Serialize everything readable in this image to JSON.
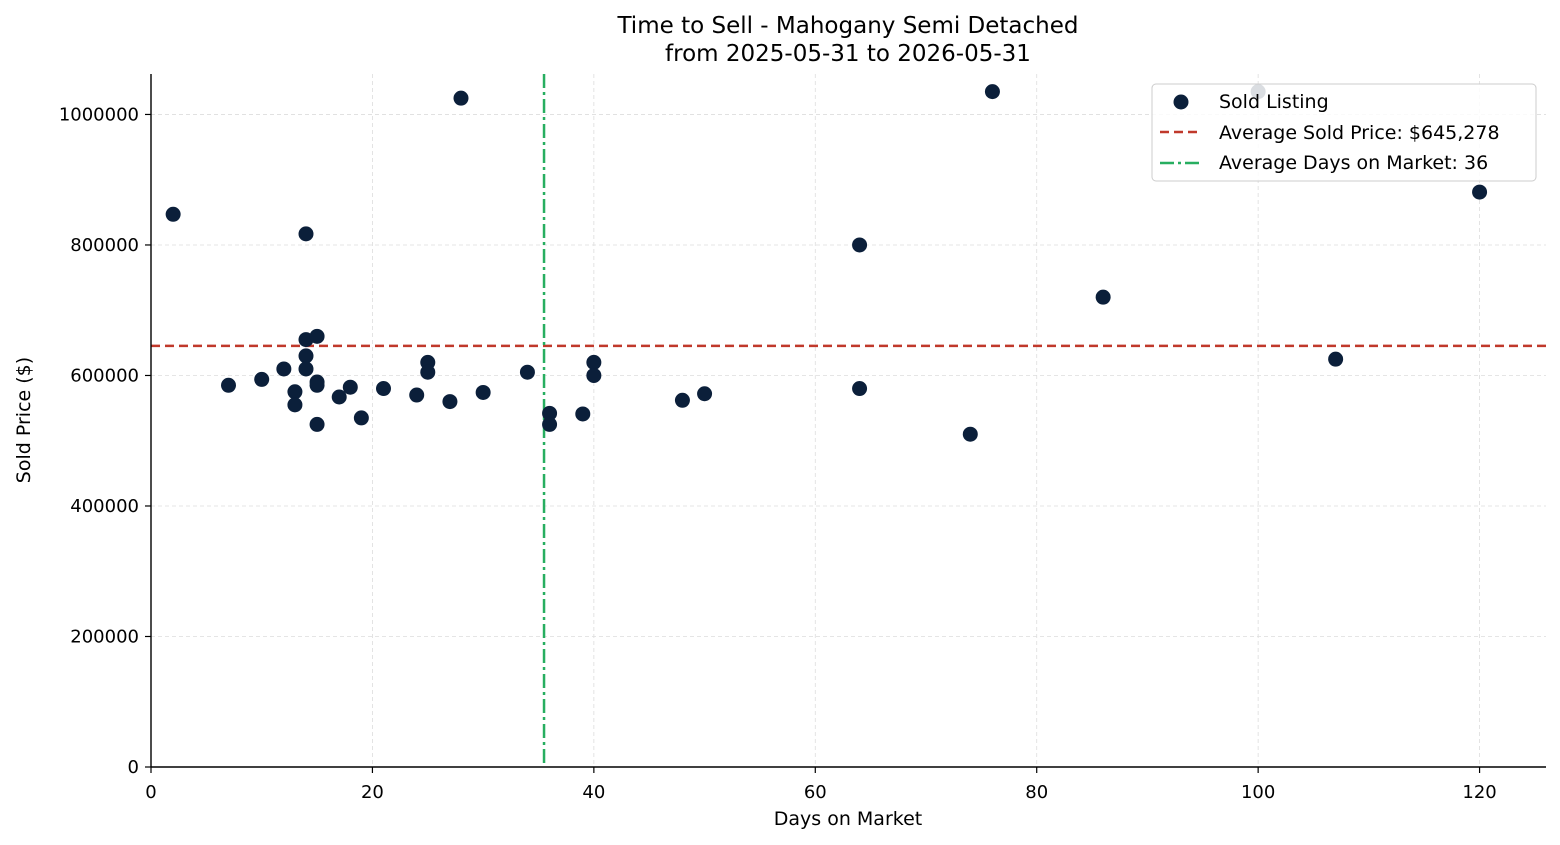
{
  "chart_data": {
    "type": "scatter",
    "title": "Time to Sell - Mahogany Semi Detached",
    "subtitle": "from 2025-05-31 to 2026-05-31",
    "xlabel": "Days on Market",
    "ylabel": "Sold Price ($)",
    "xlim": [
      0,
      126
    ],
    "ylim": [
      0,
      1062000
    ],
    "x_ticks": [
      0,
      20,
      40,
      60,
      80,
      100,
      120
    ],
    "y_ticks": [
      0,
      200000,
      400000,
      600000,
      800000,
      1000000
    ],
    "grid": true,
    "legend_position": "top-right",
    "colors": {
      "points": "#0b1f3a",
      "avg_price": "#c0392b",
      "avg_days": "#27ae60",
      "grid": "#dddddd"
    },
    "series": [
      {
        "name": "Sold Listing",
        "points": [
          [
            2,
            847000
          ],
          [
            7,
            585000
          ],
          [
            10,
            594000
          ],
          [
            12,
            610000
          ],
          [
            13,
            575000
          ],
          [
            13,
            555000
          ],
          [
            14,
            817000
          ],
          [
            14,
            655000
          ],
          [
            14,
            630000
          ],
          [
            14,
            610000
          ],
          [
            15,
            660000
          ],
          [
            15,
            590000
          ],
          [
            15,
            585000
          ],
          [
            15,
            525000
          ],
          [
            17,
            567000
          ],
          [
            18,
            582000
          ],
          [
            19,
            535000
          ],
          [
            21,
            580000
          ],
          [
            24,
            570000
          ],
          [
            25,
            620000
          ],
          [
            25,
            605000
          ],
          [
            27,
            560000
          ],
          [
            28,
            1025000
          ],
          [
            30,
            574000
          ],
          [
            34,
            605000
          ],
          [
            36,
            542000
          ],
          [
            36,
            525000
          ],
          [
            39,
            541000
          ],
          [
            40,
            620000
          ],
          [
            40,
            600000
          ],
          [
            48,
            562000
          ],
          [
            50,
            572000
          ],
          [
            64,
            800000
          ],
          [
            64,
            580000
          ],
          [
            74,
            510000
          ],
          [
            76,
            1035000
          ],
          [
            86,
            720000
          ],
          [
            100,
            1035000
          ],
          [
            107,
            625000
          ],
          [
            120,
            881000
          ]
        ]
      }
    ],
    "reference_lines": [
      {
        "orientation": "horizontal",
        "value": 645278,
        "style": "dashed",
        "label": "Average Sold Price: $645,278"
      },
      {
        "orientation": "vertical",
        "value": 35.5,
        "style": "dashdot",
        "label": "Average Days on Market: 36"
      }
    ]
  }
}
